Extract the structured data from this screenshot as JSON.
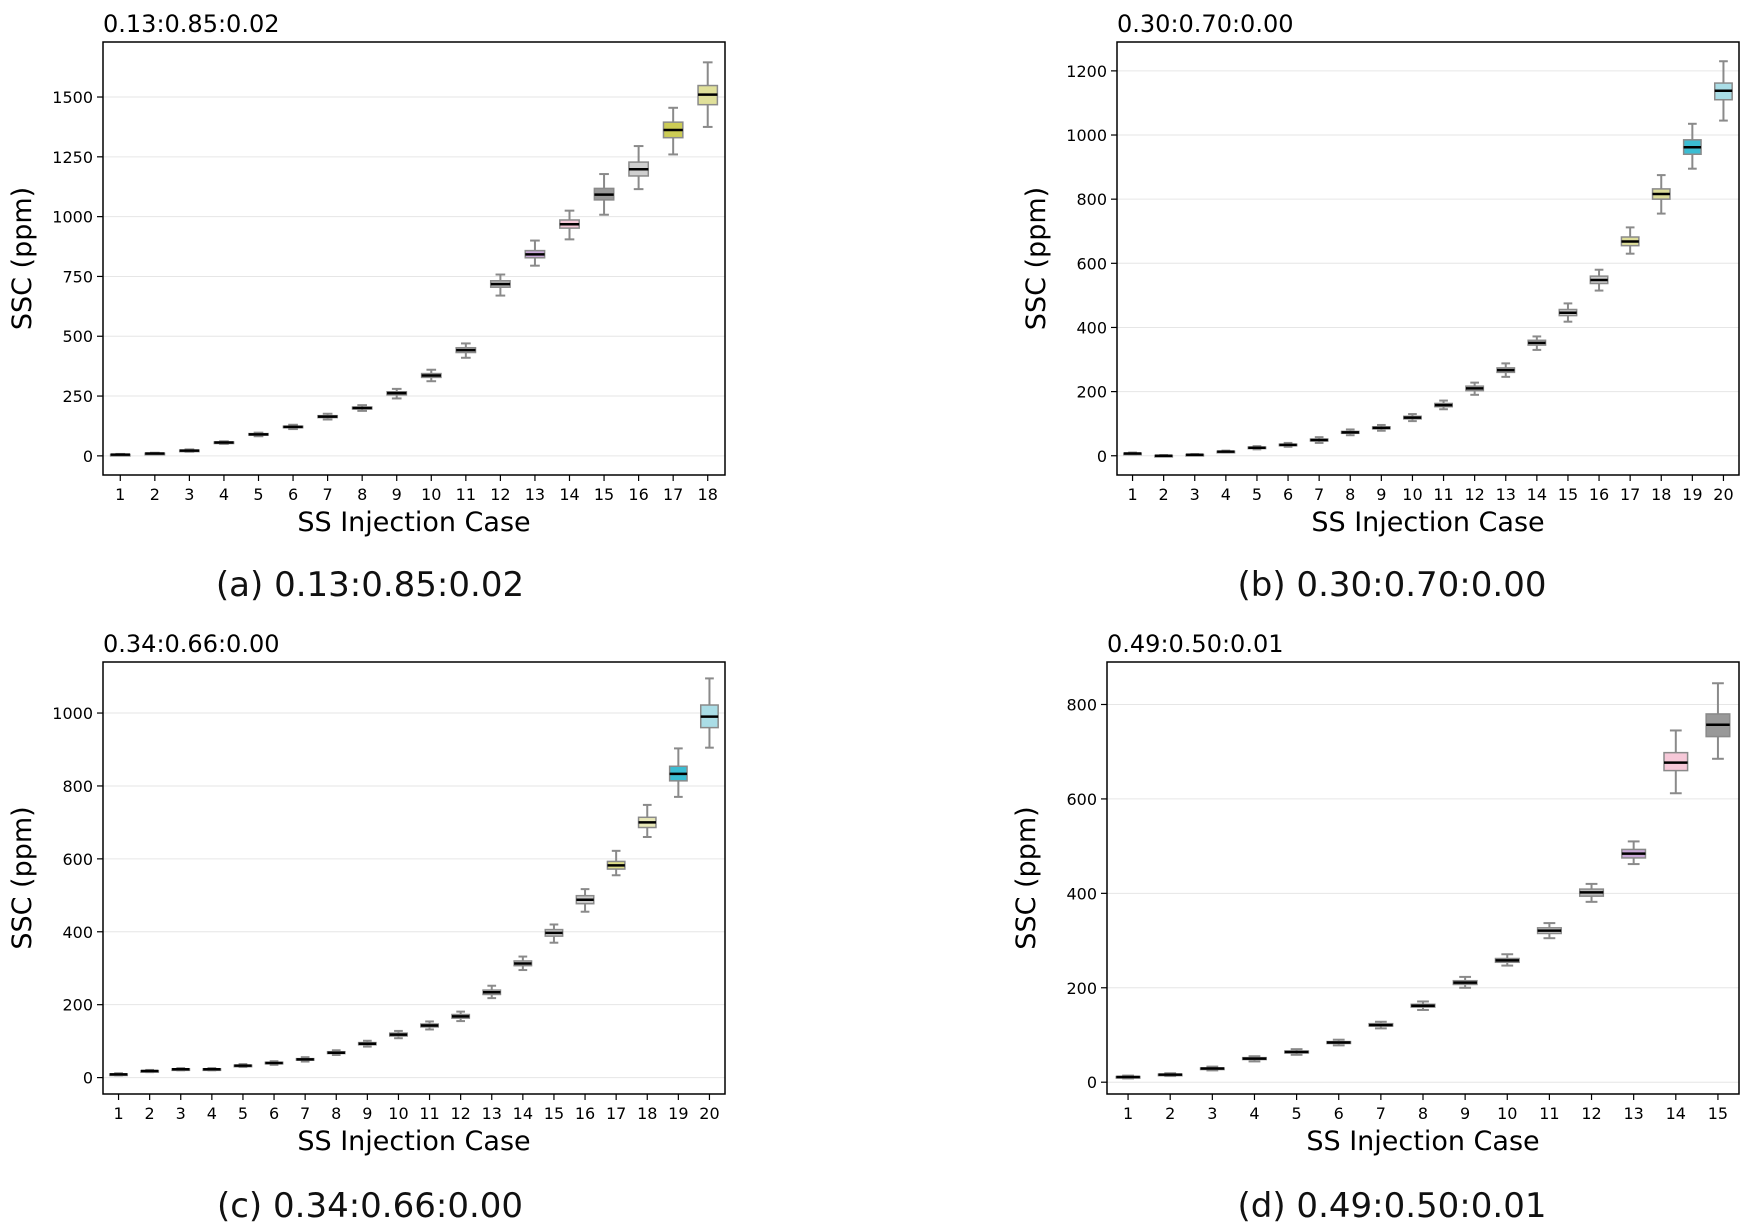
{
  "figure": {
    "captions": [
      "(a) 0.13:0.85:0.02",
      "(b) 0.30:0.70:0.00",
      "(c) 0.34:0.66:0.00",
      "(d) 0.49:0.50:0.01"
    ]
  },
  "chart_data": [
    {
      "type": "boxplot",
      "title": "0.13:0.85:0.02",
      "xlabel": "SS Injection Case",
      "ylabel": "SSC (ppm)",
      "ylim": [
        -80,
        1730
      ],
      "yticks": [
        0,
        250,
        500,
        750,
        1000,
        1250,
        1500
      ],
      "grid": "horizontal",
      "categories": [
        "1",
        "2",
        "3",
        "4",
        "5",
        "6",
        "7",
        "8",
        "9",
        "10",
        "11",
        "12",
        "13",
        "14",
        "15",
        "16",
        "17",
        "18"
      ],
      "boxes": [
        {
          "min": 2,
          "q1": 4,
          "median": 5,
          "q3": 6,
          "max": 8,
          "color": "#cccccc"
        },
        {
          "min": 7,
          "q1": 9,
          "median": 10,
          "q3": 11,
          "max": 13,
          "color": "#cccccc"
        },
        {
          "min": 17,
          "q1": 20,
          "median": 22,
          "q3": 24,
          "max": 27,
          "color": "#cccccc"
        },
        {
          "min": 50,
          "q1": 54,
          "median": 56,
          "q3": 58,
          "max": 61,
          "color": "#cccccc"
        },
        {
          "min": 82,
          "q1": 87,
          "median": 90,
          "q3": 93,
          "max": 97,
          "color": "#cccccc"
        },
        {
          "min": 112,
          "q1": 118,
          "median": 121,
          "q3": 124,
          "max": 130,
          "color": "#cccccc"
        },
        {
          "min": 152,
          "q1": 160,
          "median": 164,
          "q3": 168,
          "max": 176,
          "color": "#cccccc"
        },
        {
          "min": 188,
          "q1": 196,
          "median": 200,
          "q3": 204,
          "max": 212,
          "color": "#cccccc"
        },
        {
          "min": 240,
          "q1": 255,
          "median": 262,
          "q3": 268,
          "max": 280,
          "color": "#cccccc"
        },
        {
          "min": 312,
          "q1": 328,
          "median": 336,
          "q3": 344,
          "max": 360,
          "color": "#cccccc"
        },
        {
          "min": 410,
          "q1": 432,
          "median": 442,
          "q3": 452,
          "max": 470,
          "color": "#cccccc"
        },
        {
          "min": 670,
          "q1": 705,
          "median": 718,
          "q3": 732,
          "max": 758,
          "color": "#bbbbbb"
        },
        {
          "min": 795,
          "q1": 828,
          "median": 842,
          "q3": 858,
          "max": 900,
          "color": "#c9a7d8"
        },
        {
          "min": 905,
          "q1": 952,
          "median": 968,
          "q3": 986,
          "max": 1025,
          "color": "#f6c8d8"
        },
        {
          "min": 1008,
          "q1": 1070,
          "median": 1092,
          "q3": 1118,
          "max": 1178,
          "color": "#999999"
        },
        {
          "min": 1115,
          "q1": 1170,
          "median": 1198,
          "q3": 1228,
          "max": 1295,
          "color": "#cfcfcf"
        },
        {
          "min": 1260,
          "q1": 1330,
          "median": 1362,
          "q3": 1395,
          "max": 1455,
          "color": "#cccc55"
        },
        {
          "min": 1375,
          "q1": 1468,
          "median": 1510,
          "q3": 1548,
          "max": 1645,
          "color": "#e0e09a"
        }
      ]
    },
    {
      "type": "boxplot",
      "title": "0.30:0.70:0.00",
      "xlabel": "SS Injection Case",
      "ylabel": "SSC (ppm)",
      "ylim": [
        -60,
        1290
      ],
      "yticks": [
        0,
        200,
        400,
        600,
        800,
        1000,
        1200
      ],
      "grid": "horizontal",
      "categories": [
        "1",
        "2",
        "3",
        "4",
        "5",
        "6",
        "7",
        "8",
        "9",
        "10",
        "11",
        "12",
        "13",
        "14",
        "15",
        "16",
        "17",
        "18",
        "19",
        "20"
      ],
      "boxes": [
        {
          "min": 4,
          "q1": 6,
          "median": 7,
          "q3": 8,
          "max": 10,
          "color": "#cccccc"
        },
        {
          "min": -2,
          "q1": -1,
          "median": 0,
          "q3": 1,
          "max": 2,
          "color": "#cccccc"
        },
        {
          "min": 1,
          "q1": 2,
          "median": 3,
          "q3": 4,
          "max": 5,
          "color": "#cccccc"
        },
        {
          "min": 10,
          "q1": 12,
          "median": 13,
          "q3": 14,
          "max": 16,
          "color": "#cccccc"
        },
        {
          "min": 20,
          "q1": 23,
          "median": 25,
          "q3": 27,
          "max": 30,
          "color": "#cccccc"
        },
        {
          "min": 28,
          "q1": 32,
          "median": 34,
          "q3": 36,
          "max": 40,
          "color": "#cccccc"
        },
        {
          "min": 40,
          "q1": 46,
          "median": 49,
          "q3": 52,
          "max": 58,
          "color": "#cccccc"
        },
        {
          "min": 64,
          "q1": 70,
          "median": 73,
          "q3": 76,
          "max": 82,
          "color": "#cccccc"
        },
        {
          "min": 78,
          "q1": 84,
          "median": 87,
          "q3": 90,
          "max": 96,
          "color": "#cccccc"
        },
        {
          "min": 108,
          "q1": 115,
          "median": 119,
          "q3": 123,
          "max": 130,
          "color": "#cccccc"
        },
        {
          "min": 145,
          "q1": 153,
          "median": 158,
          "q3": 163,
          "max": 172,
          "color": "#cccccc"
        },
        {
          "min": 190,
          "q1": 203,
          "median": 210,
          "q3": 217,
          "max": 228,
          "color": "#cccccc"
        },
        {
          "min": 246,
          "q1": 260,
          "median": 267,
          "q3": 274,
          "max": 288,
          "color": "#cccccc"
        },
        {
          "min": 330,
          "q1": 345,
          "median": 352,
          "q3": 360,
          "max": 372,
          "color": "#cccccc"
        },
        {
          "min": 418,
          "q1": 437,
          "median": 446,
          "q3": 456,
          "max": 475,
          "color": "#cccccc"
        },
        {
          "min": 515,
          "q1": 537,
          "median": 548,
          "q3": 560,
          "max": 580,
          "color": "#cccccc"
        },
        {
          "min": 630,
          "q1": 655,
          "median": 668,
          "q3": 682,
          "max": 712,
          "color": "#dddd99"
        },
        {
          "min": 755,
          "q1": 800,
          "median": 816,
          "q3": 832,
          "max": 875,
          "color": "#dddd99"
        },
        {
          "min": 895,
          "q1": 940,
          "median": 962,
          "q3": 985,
          "max": 1035,
          "color": "#3bbdd3"
        },
        {
          "min": 1045,
          "q1": 1110,
          "median": 1138,
          "q3": 1162,
          "max": 1230,
          "color": "#aadde6"
        }
      ]
    },
    {
      "type": "boxplot",
      "title": "0.34:0.66:0.00",
      "xlabel": "SS Injection Case",
      "ylabel": "SSC (ppm)",
      "ylim": [
        -45,
        1140
      ],
      "yticks": [
        0,
        200,
        400,
        600,
        800,
        1000
      ],
      "grid": "horizontal",
      "categories": [
        "1",
        "2",
        "3",
        "4",
        "5",
        "6",
        "7",
        "8",
        "9",
        "10",
        "11",
        "12",
        "13",
        "14",
        "15",
        "16",
        "17",
        "18",
        "19",
        "20"
      ],
      "boxes": [
        {
          "min": 6,
          "q1": 8,
          "median": 9,
          "q3": 10,
          "max": 12,
          "color": "#cccccc"
        },
        {
          "min": 15,
          "q1": 17,
          "median": 18,
          "q3": 19,
          "max": 21,
          "color": "#cccccc"
        },
        {
          "min": 20,
          "q1": 22,
          "median": 23,
          "q3": 24,
          "max": 26,
          "color": "#cccccc"
        },
        {
          "min": 20,
          "q1": 22,
          "median": 23,
          "q3": 24,
          "max": 26,
          "color": "#cccccc"
        },
        {
          "min": 29,
          "q1": 32,
          "median": 33,
          "q3": 34,
          "max": 37,
          "color": "#cccccc"
        },
        {
          "min": 35,
          "q1": 38,
          "median": 40,
          "q3": 42,
          "max": 45,
          "color": "#cccccc"
        },
        {
          "min": 44,
          "q1": 48,
          "median": 50,
          "q3": 52,
          "max": 56,
          "color": "#cccccc"
        },
        {
          "min": 62,
          "q1": 66,
          "median": 68,
          "q3": 71,
          "max": 75,
          "color": "#cccccc"
        },
        {
          "min": 85,
          "q1": 90,
          "median": 93,
          "q3": 96,
          "max": 101,
          "color": "#cccccc"
        },
        {
          "min": 108,
          "q1": 114,
          "median": 118,
          "q3": 122,
          "max": 128,
          "color": "#cccccc"
        },
        {
          "min": 132,
          "q1": 139,
          "median": 143,
          "q3": 147,
          "max": 154,
          "color": "#cccccc"
        },
        {
          "min": 155,
          "q1": 163,
          "median": 168,
          "q3": 173,
          "max": 181,
          "color": "#cccccc"
        },
        {
          "min": 218,
          "q1": 228,
          "median": 234,
          "q3": 240,
          "max": 252,
          "color": "#cccccc"
        },
        {
          "min": 295,
          "q1": 307,
          "median": 313,
          "q3": 320,
          "max": 332,
          "color": "#cccccc"
        },
        {
          "min": 370,
          "q1": 388,
          "median": 397,
          "q3": 406,
          "max": 420,
          "color": "#cccccc"
        },
        {
          "min": 455,
          "q1": 477,
          "median": 488,
          "q3": 499,
          "max": 517,
          "color": "#cccccc"
        },
        {
          "min": 555,
          "q1": 572,
          "median": 582,
          "q3": 593,
          "max": 622,
          "color": "#dddd88"
        },
        {
          "min": 660,
          "q1": 686,
          "median": 700,
          "q3": 714,
          "max": 748,
          "color": "#e8e8b8"
        },
        {
          "min": 770,
          "q1": 814,
          "median": 833,
          "q3": 854,
          "max": 903,
          "color": "#3bbdd3"
        },
        {
          "min": 905,
          "q1": 960,
          "median": 990,
          "q3": 1022,
          "max": 1095,
          "color": "#aadde6"
        }
      ]
    },
    {
      "type": "boxplot",
      "title": "0.49:0.50:0.01",
      "xlabel": "SS Injection Case",
      "ylabel": "SSC (ppm)",
      "ylim": [
        -25,
        890
      ],
      "yticks": [
        0,
        200,
        400,
        600,
        800
      ],
      "grid": "horizontal",
      "categories": [
        "1",
        "2",
        "3",
        "4",
        "5",
        "6",
        "7",
        "8",
        "9",
        "10",
        "11",
        "12",
        "13",
        "14",
        "15"
      ],
      "boxes": [
        {
          "min": 8,
          "q1": 10,
          "median": 11,
          "q3": 12,
          "max": 14,
          "color": "#cccccc"
        },
        {
          "min": 13,
          "q1": 15,
          "median": 16,
          "q3": 17,
          "max": 19,
          "color": "#cccccc"
        },
        {
          "min": 25,
          "q1": 28,
          "median": 29,
          "q3": 30,
          "max": 33,
          "color": "#cccccc"
        },
        {
          "min": 44,
          "q1": 48,
          "median": 50,
          "q3": 52,
          "max": 55,
          "color": "#cccccc"
        },
        {
          "min": 58,
          "q1": 62,
          "median": 64,
          "q3": 66,
          "max": 70,
          "color": "#cccccc"
        },
        {
          "min": 78,
          "q1": 82,
          "median": 84,
          "q3": 86,
          "max": 90,
          "color": "#cccccc"
        },
        {
          "min": 114,
          "q1": 119,
          "median": 121,
          "q3": 124,
          "max": 128,
          "color": "#cccccc"
        },
        {
          "min": 153,
          "q1": 159,
          "median": 162,
          "q3": 165,
          "max": 171,
          "color": "#cccccc"
        },
        {
          "min": 200,
          "q1": 207,
          "median": 211,
          "q3": 215,
          "max": 223,
          "color": "#cccccc"
        },
        {
          "min": 247,
          "q1": 254,
          "median": 258,
          "q3": 262,
          "max": 271,
          "color": "#cccccc"
        },
        {
          "min": 305,
          "q1": 315,
          "median": 321,
          "q3": 327,
          "max": 337,
          "color": "#cccccc"
        },
        {
          "min": 382,
          "q1": 394,
          "median": 402,
          "q3": 409,
          "max": 420,
          "color": "#bbbbbb"
        },
        {
          "min": 462,
          "q1": 475,
          "median": 484,
          "q3": 493,
          "max": 510,
          "color": "#c9a7d8"
        },
        {
          "min": 612,
          "q1": 660,
          "median": 677,
          "q3": 698,
          "max": 745,
          "color": "#f6c8d8"
        },
        {
          "min": 685,
          "q1": 732,
          "median": 757,
          "q3": 780,
          "max": 845,
          "color": "#999999"
        }
      ]
    }
  ]
}
